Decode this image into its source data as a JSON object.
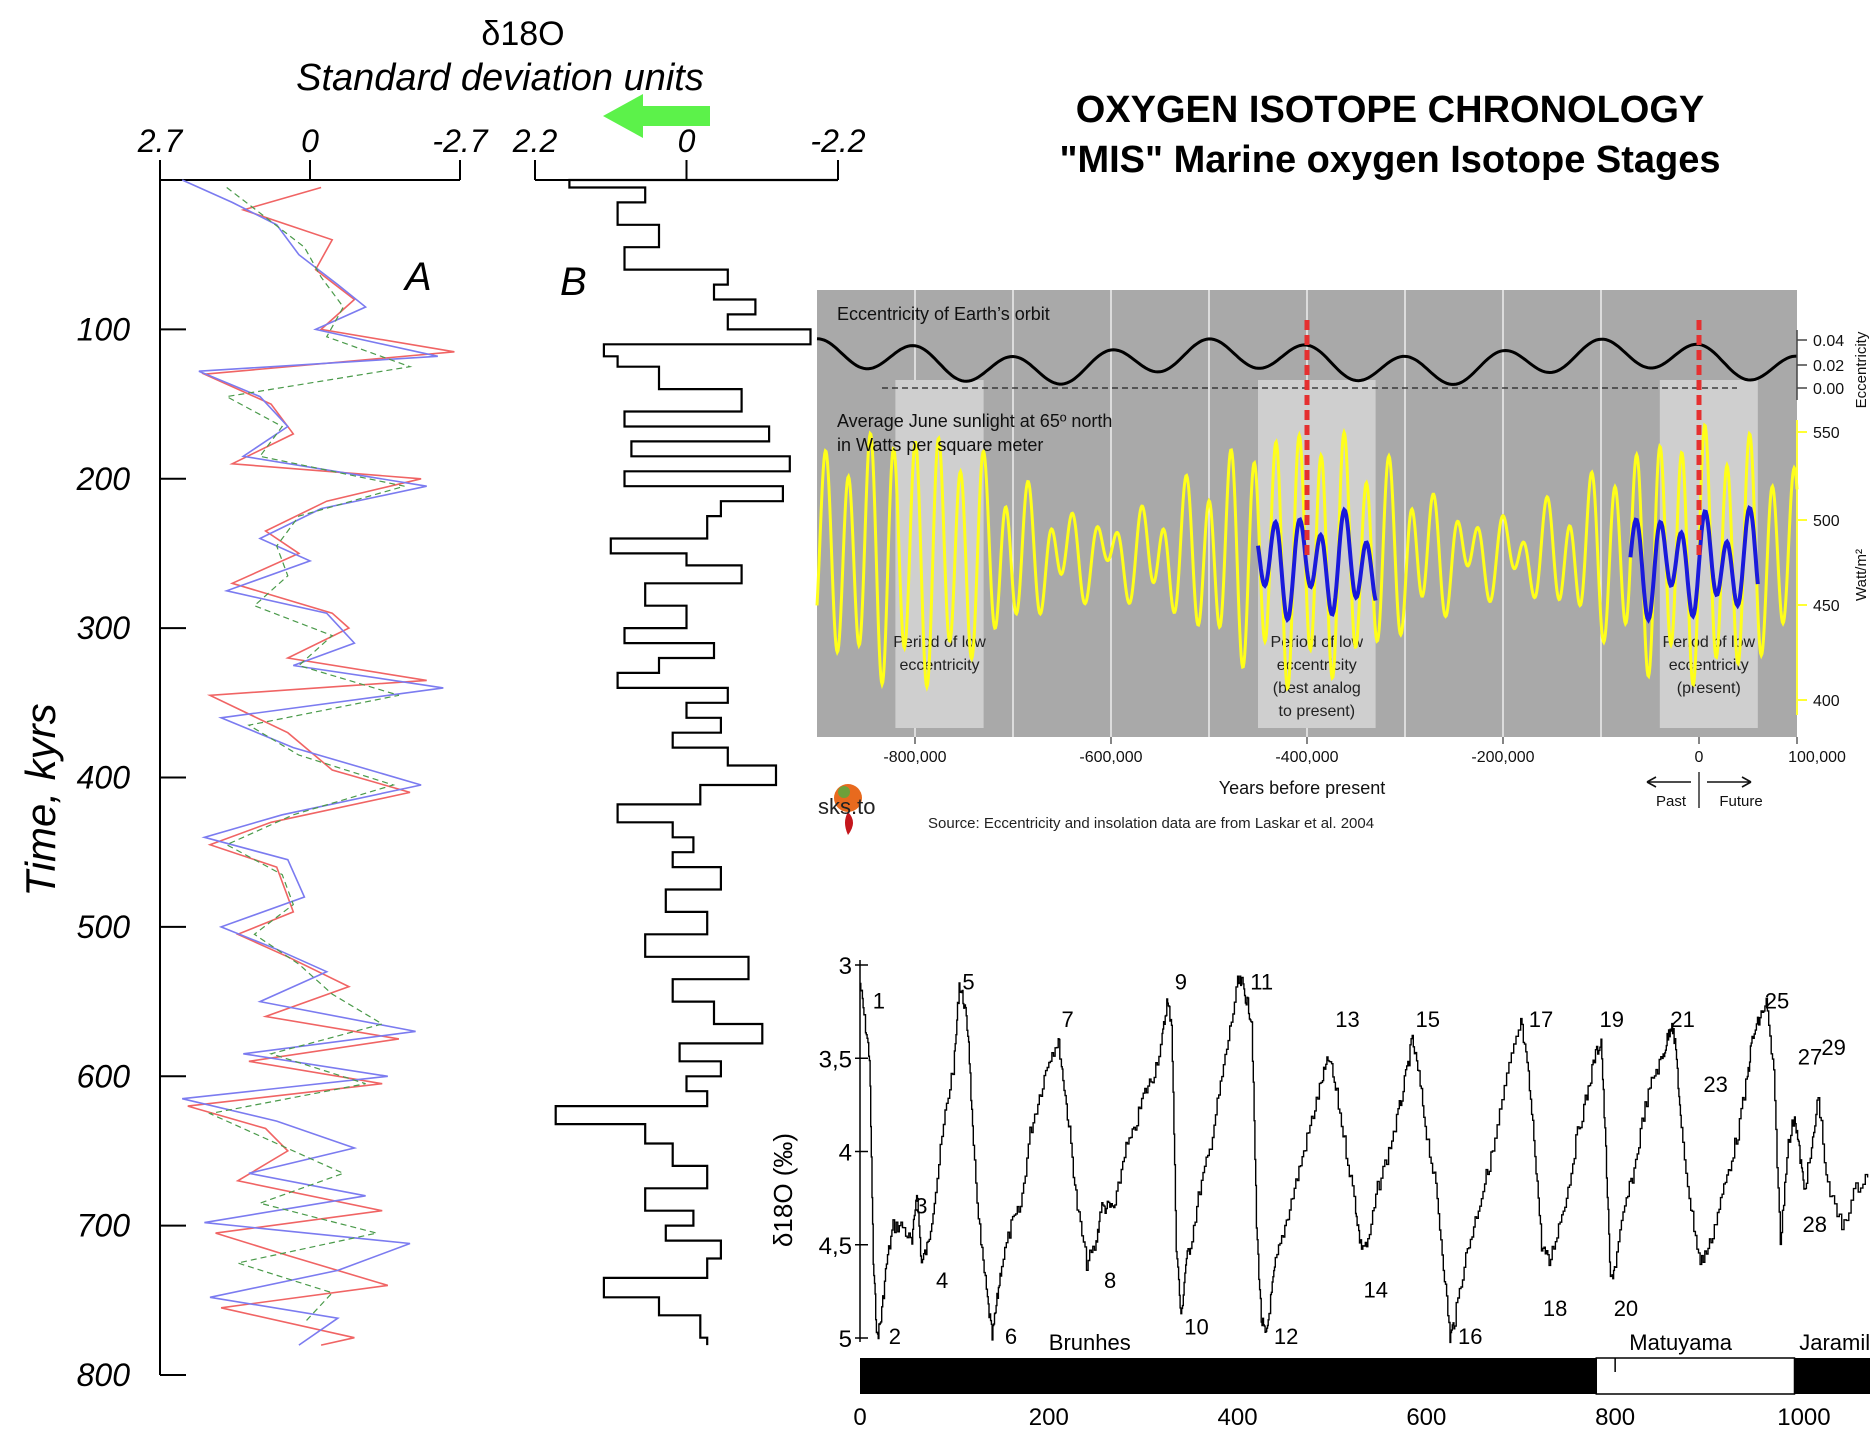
{
  "title": {
    "line1": "OXYGEN ISOTOPE CHRONOLOGY",
    "line2": "\"MIS\" Marine oxygen Isotope Stages"
  },
  "colors": {
    "arrow": "#5cf24a",
    "insolation": "#ffff1a",
    "analog": "#1a1adb",
    "marker": "#e53030",
    "panel_bg": "#a9a9a9",
    "period_box": "#cfcfcf"
  },
  "chart_data": [
    {
      "id": "panel-A",
      "type": "line",
      "title": "δ18O",
      "subtitle": "Standard deviation units",
      "ylabel": "Time, kyrs",
      "panel_label": "A",
      "x_ticks": [
        "2.7",
        "0",
        "-2.7"
      ],
      "xlim": [
        2.7,
        -2.7
      ],
      "y_ticks": [
        "100",
        "200",
        "300",
        "400",
        "500",
        "600",
        "700",
        "800"
      ],
      "ylim": [
        0,
        800
      ],
      "series": [
        {
          "color": "#f06464",
          "t": [
            5,
            20,
            40,
            60,
            80,
            100,
            115,
            130,
            150,
            170,
            190,
            200,
            215,
            235,
            250,
            270,
            290,
            300,
            320,
            335,
            345,
            370,
            395,
            410,
            430,
            445,
            460,
            490,
            505,
            520,
            540,
            560,
            575,
            590,
            605,
            620,
            635,
            650,
            670,
            690,
            705,
            720,
            740,
            755,
            775,
            780
          ],
          "values": [
            -0.2,
            1.2,
            -0.4,
            -0.1,
            -0.8,
            -0.2,
            -2.6,
            1.9,
            0.7,
            0.3,
            1.4,
            -2.0,
            -0.3,
            0.8,
            0.2,
            1.4,
            -0.4,
            -0.7,
            0.4,
            -2.1,
            1.8,
            0.4,
            -0.4,
            -1.8,
            0.7,
            1.8,
            0.6,
            0.3,
            1.3,
            0.4,
            -0.7,
            0.8,
            -1.6,
            1.1,
            -1.3,
            2.2,
            0.8,
            0.4,
            1.3,
            -1.3,
            1.7,
            0.4,
            -1.4,
            1.6,
            -0.8,
            -0.2
          ]
        },
        {
          "color": "#7b7bf0",
          "t": [
            0,
            15,
            30,
            50,
            70,
            85,
            100,
            118,
            128,
            145,
            165,
            185,
            205,
            220,
            240,
            255,
            275,
            290,
            310,
            325,
            340,
            360,
            380,
            405,
            425,
            440,
            455,
            480,
            500,
            515,
            530,
            550,
            570,
            585,
            600,
            615,
            630,
            648,
            665,
            680,
            698,
            712,
            730,
            748,
            762,
            780
          ],
          "values": [
            2.3,
            1.4,
            0.6,
            0.2,
            -0.5,
            -1.0,
            -0.1,
            -2.3,
            2.0,
            0.9,
            0.4,
            1.2,
            -2.1,
            -0.2,
            0.9,
            0.0,
            1.5,
            -0.3,
            -0.8,
            0.3,
            -2.4,
            1.6,
            0.3,
            -2.0,
            0.5,
            1.9,
            0.4,
            0.1,
            1.6,
            0.6,
            -0.3,
            0.9,
            -1.9,
            1.2,
            -1.4,
            2.3,
            0.6,
            -0.8,
            1.1,
            -1.0,
            1.9,
            -1.8,
            -0.5,
            1.8,
            -0.5,
            0.2
          ]
        },
        {
          "color": "#4a9a4a",
          "t": [
            5,
            25,
            45,
            65,
            85,
            105,
            125,
            145,
            165,
            185,
            205,
            225,
            245,
            265,
            285,
            305,
            325,
            345,
            365,
            385,
            405,
            425,
            445,
            465,
            485,
            505,
            525,
            545,
            565,
            585,
            605,
            625,
            645,
            665,
            685,
            705,
            725,
            745,
            765
          ],
          "values": [
            1.5,
            0.8,
            0.1,
            -0.2,
            -0.6,
            -0.3,
            -1.8,
            1.5,
            0.5,
            0.9,
            -1.7,
            0.2,
            0.6,
            0.4,
            1.0,
            -0.4,
            0.2,
            -1.6,
            1.1,
            0.2,
            -1.5,
            0.3,
            1.5,
            0.5,
            0.3,
            1.0,
            0.2,
            -0.4,
            -1.3,
            0.7,
            -1.0,
            1.8,
            0.6,
            -0.6,
            0.9,
            -1.2,
            1.3,
            -0.4,
            0.1
          ]
        }
      ]
    },
    {
      "id": "panel-B",
      "type": "line",
      "panel_label": "B",
      "x_ticks": [
        "2.2",
        "0",
        "-2.2"
      ],
      "xlim": [
        2.2,
        -2.2
      ],
      "ylim": [
        0,
        800
      ],
      "arrow": "green arrow pointing toward positive (left)",
      "series": [
        {
          "color": "#000000",
          "t": [
            0,
            5,
            15,
            30,
            45,
            60,
            70,
            80,
            90,
            100,
            110,
            118,
            125,
            140,
            155,
            165,
            175,
            185,
            195,
            205,
            215,
            225,
            240,
            250,
            258,
            270,
            285,
            300,
            310,
            320,
            330,
            340,
            350,
            360,
            370,
            380,
            392,
            405,
            418,
            430,
            440,
            450,
            460,
            475,
            490,
            505,
            520,
            535,
            550,
            565,
            578,
            590,
            600,
            610,
            620,
            632,
            645,
            660,
            675,
            690,
            700,
            710,
            722,
            735,
            748,
            760,
            775,
            780
          ],
          "values": [
            -2.2,
            1.7,
            0.6,
            1.0,
            0.4,
            0.9,
            -0.6,
            -0.4,
            -1.0,
            -0.6,
            -1.8,
            1.2,
            1.0,
            0.4,
            -0.8,
            0.9,
            -1.2,
            0.8,
            -1.5,
            0.9,
            -1.4,
            -0.5,
            -0.3,
            1.1,
            0.0,
            -0.8,
            0.6,
            0.0,
            0.9,
            -0.4,
            0.4,
            1.0,
            -0.6,
            0.0,
            -0.5,
            0.2,
            -0.6,
            -1.3,
            -0.2,
            1.0,
            0.2,
            -0.1,
            0.2,
            -0.5,
            0.3,
            -0.3,
            0.6,
            -0.9,
            0.2,
            -0.4,
            -1.1,
            0.1,
            -0.5,
            0.0,
            -0.3,
            1.9,
            0.6,
            0.2,
            -0.3,
            0.6,
            -0.1,
            0.3,
            -0.5,
            -0.3,
            1.2,
            0.4,
            -0.2,
            -0.3
          ]
        }
      ]
    },
    {
      "id": "panel-eccentricity",
      "type": "line",
      "panel_title": "Eccentricity of Earth’s orbit",
      "sub_title": "Average June sunlight at 65º north\nin Watts per square meter",
      "xlabel": "Years before present",
      "x_ticks": [
        "-800,000",
        "-600,000",
        "-400,000",
        "-200,000",
        "0",
        "100,000"
      ],
      "xlim": [
        -900000,
        100000
      ],
      "ecc_ticks": [
        "0.04",
        "0.02",
        "0.00"
      ],
      "ecc_label": "Eccentricity",
      "ins_ticks": [
        "550",
        "500",
        "450",
        "400"
      ],
      "ins_label": "Watt/m²",
      "period_labels": [
        "Period of low\neccentricity",
        "Period of low\neccentricity\n(best analog\nto present)",
        "Period of low\neccentricity\n(present)"
      ],
      "periods": [
        [
          -820000,
          -730000
        ],
        [
          -450000,
          -330000
        ],
        [
          -40000,
          60000
        ]
      ],
      "markers": [
        -400000,
        0
      ],
      "logo_text": "sks.to",
      "source": "Source: Eccentricity and insolation data are from Laskar et al. 2004",
      "past_label": "Past",
      "future_label": "Future"
    },
    {
      "id": "panel-MIS",
      "type": "line",
      "ylabel": "δ18O (‰)",
      "y_ticks": [
        "3",
        "3,5",
        "4",
        "4,5",
        "5"
      ],
      "ylim": [
        3,
        5
      ],
      "x_ticks": [
        "0",
        "200",
        "400",
        "600",
        "800",
        "1000"
      ],
      "xlim": [
        0,
        1070
      ],
      "stage_labels": [
        {
          "label": "1",
          "x": 5,
          "y": 3.2
        },
        {
          "label": "2",
          "x": 22,
          "y": 5.0
        },
        {
          "label": "3",
          "x": 50,
          "y": 4.3
        },
        {
          "label": "4",
          "x": 72,
          "y": 4.7
        },
        {
          "label": "5",
          "x": 100,
          "y": 3.1
        },
        {
          "label": "6",
          "x": 145,
          "y": 5.0
        },
        {
          "label": "7",
          "x": 205,
          "y": 3.3
        },
        {
          "label": "8",
          "x": 250,
          "y": 4.7
        },
        {
          "label": "9",
          "x": 325,
          "y": 3.1
        },
        {
          "label": "10",
          "x": 335,
          "y": 4.95
        },
        {
          "label": "11",
          "x": 405,
          "y": 3.1
        },
        {
          "label": "12",
          "x": 430,
          "y": 5.0
        },
        {
          "label": "13",
          "x": 495,
          "y": 3.3
        },
        {
          "label": "14",
          "x": 525,
          "y": 4.75
        },
        {
          "label": "15",
          "x": 580,
          "y": 3.3
        },
        {
          "label": "16",
          "x": 625,
          "y": 5.0
        },
        {
          "label": "17",
          "x": 700,
          "y": 3.3
        },
        {
          "label": "18",
          "x": 715,
          "y": 4.85
        },
        {
          "label": "19",
          "x": 775,
          "y": 3.3
        },
        {
          "label": "20",
          "x": 790,
          "y": 4.85
        },
        {
          "label": "21",
          "x": 850,
          "y": 3.3
        },
        {
          "label": "23",
          "x": 885,
          "y": 3.65
        },
        {
          "label": "25",
          "x": 950,
          "y": 3.2
        },
        {
          "label": "27",
          "x": 985,
          "y": 3.5
        },
        {
          "label": "28",
          "x": 990,
          "y": 4.4
        },
        {
          "label": "29",
          "x": 1010,
          "y": 3.45
        }
      ],
      "magneto_labels": [
        "Brunhes",
        "Matuyama",
        "Jaramil"
      ],
      "series": [
        {
          "color": "#000000",
          "x": [
            0,
            5,
            10,
            14,
            18,
            22,
            28,
            35,
            45,
            55,
            60,
            65,
            72,
            80,
            90,
            100,
            105,
            110,
            115,
            120,
            128,
            135,
            140,
            145,
            150,
            160,
            170,
            180,
            190,
            200,
            210,
            215,
            222,
            230,
            240,
            250,
            255,
            262,
            270,
            280,
            290,
            300,
            310,
            320,
            325,
            330,
            335,
            340,
            345,
            350,
            360,
            370,
            380,
            390,
            400,
            405,
            410,
            415,
            420,
            425,
            430,
            435,
            440,
            450,
            460,
            470,
            480,
            490,
            497,
            505,
            515,
            525,
            530,
            538,
            548,
            560,
            570,
            578,
            585,
            592,
            600,
            610,
            618,
            625,
            630,
            640,
            650,
            660,
            670,
            685,
            700,
            708,
            715,
            722,
            730,
            740,
            750,
            760,
            770,
            778,
            785,
            790,
            795,
            800,
            810,
            820,
            830,
            840,
            850,
            855,
            860,
            865,
            870,
            880,
            890,
            900,
            910,
            920,
            930,
            940,
            945,
            952,
            960,
            968,
            975,
            982,
            990,
            995,
            1000,
            1008,
            1015,
            1025,
            1040,
            1055,
            1070
          ],
          "values": [
            3.1,
            3.3,
            3.5,
            4.6,
            5.0,
            4.9,
            4.6,
            4.4,
            4.4,
            4.5,
            4.2,
            4.6,
            4.5,
            4.2,
            3.8,
            3.5,
            3.1,
            3.2,
            3.4,
            4.0,
            4.5,
            4.8,
            5.0,
            4.8,
            4.6,
            4.4,
            4.3,
            3.9,
            3.7,
            3.5,
            3.4,
            3.6,
            3.9,
            4.3,
            4.6,
            4.5,
            4.3,
            4.3,
            4.3,
            4.0,
            3.9,
            3.7,
            3.6,
            3.4,
            3.2,
            3.3,
            4.5,
            4.9,
            4.6,
            4.5,
            4.2,
            4.0,
            3.7,
            3.4,
            3.1,
            3.1,
            3.2,
            3.3,
            4.4,
            4.9,
            5.0,
            4.8,
            4.6,
            4.4,
            4.2,
            4.0,
            3.8,
            3.6,
            3.5,
            3.7,
            4.0,
            4.3,
            4.5,
            4.5,
            4.2,
            4.0,
            3.8,
            3.6,
            3.4,
            3.6,
            3.9,
            4.2,
            4.6,
            5.0,
            4.9,
            4.6,
            4.4,
            4.2,
            4.0,
            3.6,
            3.3,
            3.6,
            4.0,
            4.5,
            4.6,
            4.4,
            4.2,
            3.9,
            3.7,
            3.5,
            3.4,
            4.0,
            4.7,
            4.6,
            4.3,
            4.1,
            3.8,
            3.6,
            3.5,
            3.4,
            3.3,
            3.5,
            3.9,
            4.3,
            4.6,
            4.5,
            4.3,
            4.1,
            3.9,
            3.6,
            3.4,
            3.3,
            3.2,
            3.6,
            4.5,
            4.0,
            3.8,
            4.0,
            4.2,
            4.0,
            3.7,
            4.2,
            4.4,
            4.2,
            4.1
          ]
        }
      ]
    }
  ]
}
